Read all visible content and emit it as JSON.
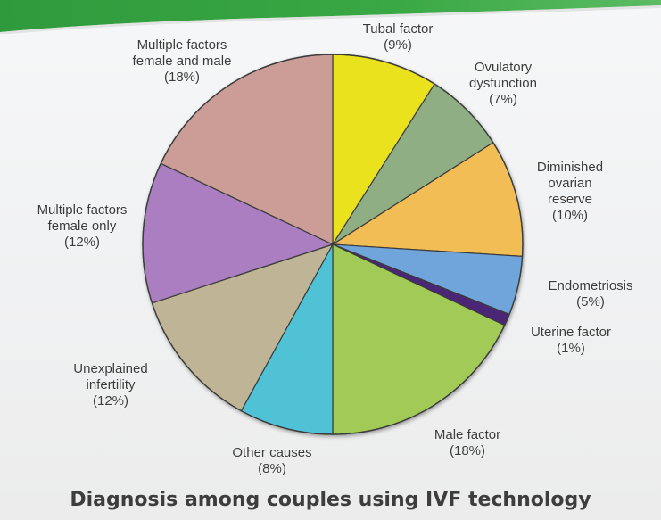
{
  "slide": {
    "caption": "Diagnosis among couples using IVF technology",
    "accent_color": "#3aa845",
    "background_color": "#f2f3f4"
  },
  "chart_data": {
    "type": "pie",
    "title": "",
    "start_angle_deg": 0,
    "direction": "clockwise",
    "slices": [
      {
        "label": [
          "Tubal factor",
          "(9%)"
        ],
        "value": 9,
        "color": "#eae21a"
      },
      {
        "label": [
          "Ovulatory",
          "dysfunction",
          "(7%)"
        ],
        "value": 7,
        "color": "#8fae84"
      },
      {
        "label": [
          "Diminished",
          "ovarian",
          "reserve",
          "(10%)"
        ],
        "value": 10,
        "color": "#f2bd55"
      },
      {
        "label": [
          "Endometriosis",
          "(5%)"
        ],
        "value": 5,
        "color": "#6fa5dc"
      },
      {
        "label": [
          "Uterine factor",
          "(1%)"
        ],
        "value": 1,
        "color": "#4b2677"
      },
      {
        "label": [
          "Male factor",
          "(18%)"
        ],
        "value": 18,
        "color": "#a1cb56"
      },
      {
        "label": [
          "Other causes",
          "(8%)"
        ],
        "value": 8,
        "color": "#4fc2d6"
      },
      {
        "label": [
          "Unexplained",
          "infertility",
          "(12%)"
        ],
        "value": 12,
        "color": "#bfb596"
      },
      {
        "label": [
          "Multiple factors",
          "female only",
          "(12%)"
        ],
        "value": 12,
        "color": "#aa7ec1"
      },
      {
        "label": [
          "Multiple factors",
          "female and male",
          "(18%)"
        ],
        "value": 18,
        "color": "#cc9c96"
      }
    ]
  }
}
